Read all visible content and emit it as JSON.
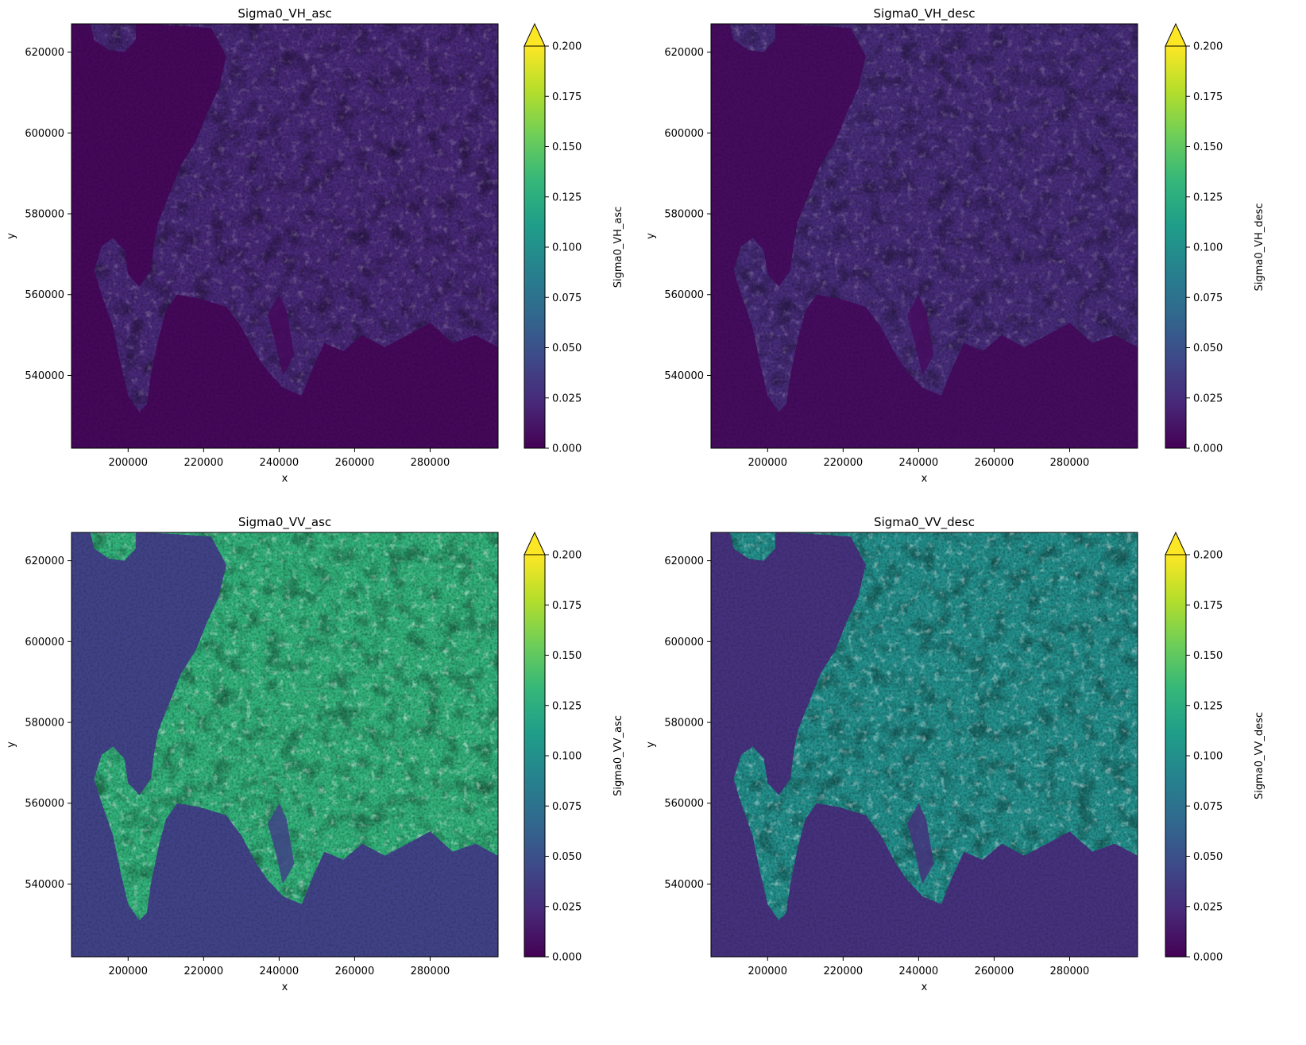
{
  "colormap": {
    "name": "viridis",
    "stops": [
      "#440154",
      "#482878",
      "#3e4989",
      "#31688e",
      "#26828e",
      "#1f9e89",
      "#35b779",
      "#6ece58",
      "#b5de2b",
      "#fde725"
    ]
  },
  "chart_data": [
    {
      "type": "heatmap",
      "title": "Sigma0_VH_asc",
      "xlabel": "x",
      "ylabel": "y",
      "xlim": [
        185000,
        298000
      ],
      "ylim": [
        522000,
        627000
      ],
      "xticks": [
        200000,
        220000,
        240000,
        260000,
        280000
      ],
      "yticks": [
        540000,
        560000,
        580000,
        600000,
        620000
      ],
      "xtick_labels": [
        "200000",
        "220000",
        "240000",
        "260000",
        "280000"
      ],
      "ytick_labels": [
        "540000",
        "560000",
        "580000",
        "600000",
        "620000"
      ],
      "colorbar": {
        "label": "Sigma0_VH_asc",
        "vmin": 0.0,
        "vmax": 0.2,
        "extend": "max",
        "ticks": [
          0.0,
          0.025,
          0.05,
          0.075,
          0.1,
          0.125,
          0.15,
          0.175,
          0.2
        ],
        "tick_labels": [
          "0.000",
          "0.025",
          "0.050",
          "0.075",
          "0.100",
          "0.125",
          "0.150",
          "0.175",
          "0.200"
        ]
      },
      "background_level": 0.004,
      "land_level": 0.022
    },
    {
      "type": "heatmap",
      "title": "Sigma0_VH_desc",
      "xlabel": "x",
      "ylabel": "y",
      "xlim": [
        185000,
        298000
      ],
      "ylim": [
        522000,
        627000
      ],
      "xticks": [
        200000,
        220000,
        240000,
        260000,
        280000
      ],
      "yticks": [
        540000,
        560000,
        580000,
        600000,
        620000
      ],
      "xtick_labels": [
        "200000",
        "220000",
        "240000",
        "260000",
        "280000"
      ],
      "ytick_labels": [
        "540000",
        "560000",
        "580000",
        "600000",
        "620000"
      ],
      "colorbar": {
        "label": "Sigma0_VH_desc",
        "vmin": 0.0,
        "vmax": 0.2,
        "extend": "max",
        "ticks": [
          0.0,
          0.025,
          0.05,
          0.075,
          0.1,
          0.125,
          0.15,
          0.175,
          0.2
        ],
        "tick_labels": [
          "0.000",
          "0.025",
          "0.050",
          "0.075",
          "0.100",
          "0.125",
          "0.150",
          "0.175",
          "0.200"
        ]
      },
      "background_level": 0.006,
      "land_level": 0.025
    },
    {
      "type": "heatmap",
      "title": "Sigma0_VV_asc",
      "xlabel": "x",
      "ylabel": "y",
      "xlim": [
        185000,
        298000
      ],
      "ylim": [
        522000,
        627000
      ],
      "xticks": [
        200000,
        220000,
        240000,
        260000,
        280000
      ],
      "yticks": [
        540000,
        560000,
        580000,
        600000,
        620000
      ],
      "xtick_labels": [
        "200000",
        "220000",
        "240000",
        "260000",
        "280000"
      ],
      "ytick_labels": [
        "540000",
        "560000",
        "580000",
        "600000",
        "620000"
      ],
      "colorbar": {
        "label": "Sigma0_VV_asc",
        "vmin": 0.0,
        "vmax": 0.2,
        "extend": "max",
        "ticks": [
          0.0,
          0.025,
          0.05,
          0.075,
          0.1,
          0.125,
          0.15,
          0.175,
          0.2
        ],
        "tick_labels": [
          "0.000",
          "0.025",
          "0.050",
          "0.075",
          "0.100",
          "0.125",
          "0.150",
          "0.175",
          "0.200"
        ]
      },
      "background_level": 0.04,
      "land_level": 0.13
    },
    {
      "type": "heatmap",
      "title": "Sigma0_VV_desc",
      "xlabel": "x",
      "ylabel": "y",
      "xlim": [
        185000,
        298000
      ],
      "ylim": [
        522000,
        627000
      ],
      "xticks": [
        200000,
        220000,
        240000,
        260000,
        280000
      ],
      "yticks": [
        540000,
        560000,
        580000,
        600000,
        620000
      ],
      "xtick_labels": [
        "200000",
        "220000",
        "240000",
        "260000",
        "280000"
      ],
      "ytick_labels": [
        "540000",
        "560000",
        "580000",
        "600000",
        "620000"
      ],
      "colorbar": {
        "label": "Sigma0_VV_desc",
        "vmin": 0.0,
        "vmax": 0.2,
        "extend": "max",
        "ticks": [
          0.0,
          0.025,
          0.05,
          0.075,
          0.1,
          0.125,
          0.15,
          0.175,
          0.2
        ],
        "tick_labels": [
          "0.000",
          "0.025",
          "0.050",
          "0.075",
          "0.100",
          "0.125",
          "0.150",
          "0.175",
          "0.200"
        ]
      },
      "background_level": 0.028,
      "land_level": 0.1
    }
  ]
}
